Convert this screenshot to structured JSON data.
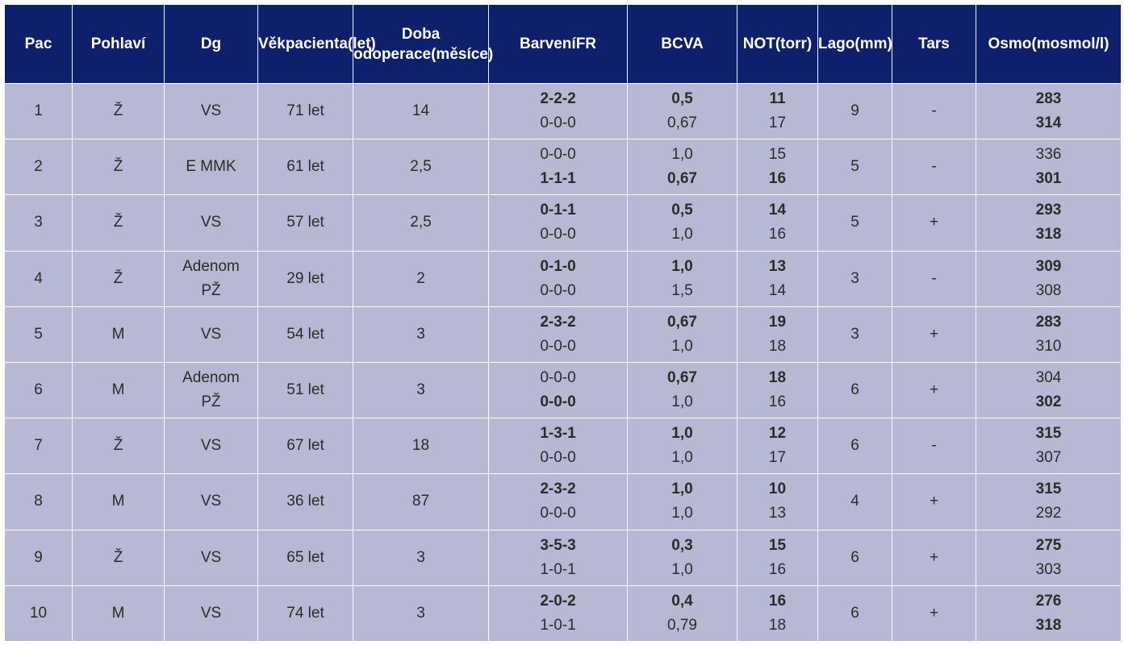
{
  "headers": [
    [
      "Pac"
    ],
    [
      "Pohlaví"
    ],
    [
      "Dg"
    ],
    [
      "Věk",
      "pacienta",
      "(let)"
    ],
    [
      "Doba od",
      "operace",
      "(měsíce)"
    ],
    [
      "Barvení",
      "FR"
    ],
    [
      "BCVA"
    ],
    [
      "NOT",
      "(torr)"
    ],
    [
      "Lago",
      "(mm)"
    ],
    [
      "Tars"
    ],
    [
      "Osmo",
      "(mosmol/l)"
    ]
  ],
  "rows": [
    {
      "pac": "1",
      "sex": "Ž",
      "dg": [
        "VS"
      ],
      "age": "71 let",
      "time": "14",
      "fr": [
        {
          "v": "2-2-2",
          "b": true
        },
        {
          "v": "0-0-0",
          "b": false
        }
      ],
      "bcva": [
        {
          "v": "0,5",
          "b": true
        },
        {
          "v": "0,67",
          "b": false
        }
      ],
      "not": [
        {
          "v": "11",
          "b": true
        },
        {
          "v": "17",
          "b": false
        }
      ],
      "lago": "9",
      "tars": "-",
      "osmo": [
        {
          "v": "283",
          "b": true
        },
        {
          "v": "314",
          "b": true
        }
      ]
    },
    {
      "pac": "2",
      "sex": "Ž",
      "dg": [
        "E MMK"
      ],
      "age": "61 let",
      "time": "2,5",
      "fr": [
        {
          "v": "0-0-0",
          "b": false
        },
        {
          "v": "1-1-1",
          "b": true
        }
      ],
      "bcva": [
        {
          "v": "1,0",
          "b": false
        },
        {
          "v": "0,67",
          "b": true
        }
      ],
      "not": [
        {
          "v": "15",
          "b": false
        },
        {
          "v": "16",
          "b": true
        }
      ],
      "lago": "5",
      "tars": "-",
      "osmo": [
        {
          "v": "336",
          "b": false
        },
        {
          "v": "301",
          "b": true
        }
      ]
    },
    {
      "pac": "3",
      "sex": "Ž",
      "dg": [
        "VS"
      ],
      "age": "57 let",
      "time": "2,5",
      "fr": [
        {
          "v": "0-1-1",
          "b": true
        },
        {
          "v": "0-0-0",
          "b": false
        }
      ],
      "bcva": [
        {
          "v": "0,5",
          "b": true
        },
        {
          "v": "1,0",
          "b": false
        }
      ],
      "not": [
        {
          "v": "14",
          "b": true
        },
        {
          "v": "16",
          "b": false
        }
      ],
      "lago": "5",
      "tars": "+",
      "osmo": [
        {
          "v": "293",
          "b": true
        },
        {
          "v": "318",
          "b": true
        }
      ]
    },
    {
      "pac": "4",
      "sex": "Ž",
      "dg": [
        "Adenom",
        "PŽ"
      ],
      "age": "29 let",
      "time": "2",
      "fr": [
        {
          "v": "0-1-0",
          "b": true
        },
        {
          "v": "0-0-0",
          "b": false
        }
      ],
      "bcva": [
        {
          "v": "1,0",
          "b": true
        },
        {
          "v": "1,5",
          "b": false
        }
      ],
      "not": [
        {
          "v": "13",
          "b": true
        },
        {
          "v": "14",
          "b": false
        }
      ],
      "lago": "3",
      "tars": "-",
      "osmo": [
        {
          "v": "309",
          "b": true
        },
        {
          "v": "308",
          "b": false
        }
      ]
    },
    {
      "pac": "5",
      "sex": "M",
      "dg": [
        "VS"
      ],
      "age": "54 let",
      "time": "3",
      "fr": [
        {
          "v": "2-3-2",
          "b": true
        },
        {
          "v": "0-0-0",
          "b": false
        }
      ],
      "bcva": [
        {
          "v": "0,67",
          "b": true
        },
        {
          "v": "1,0",
          "b": false
        }
      ],
      "not": [
        {
          "v": "19",
          "b": true
        },
        {
          "v": "18",
          "b": false
        }
      ],
      "lago": "3",
      "tars": "+",
      "osmo": [
        {
          "v": "283",
          "b": true
        },
        {
          "v": "310",
          "b": false
        }
      ]
    },
    {
      "pac": "6",
      "sex": "M",
      "dg": [
        "Adenom",
        "PŽ"
      ],
      "age": "51 let",
      "time": "3",
      "fr": [
        {
          "v": "0-0-0",
          "b": false
        },
        {
          "v": "0-0-0",
          "b": true
        }
      ],
      "bcva": [
        {
          "v": "0,67",
          "b": true
        },
        {
          "v": "1,0",
          "b": false
        }
      ],
      "not": [
        {
          "v": "18",
          "b": true
        },
        {
          "v": "16",
          "b": false
        }
      ],
      "lago": "6",
      "tars": "+",
      "osmo": [
        {
          "v": "304",
          "b": false
        },
        {
          "v": "302",
          "b": true
        }
      ]
    },
    {
      "pac": "7",
      "sex": "Ž",
      "dg": [
        "VS"
      ],
      "age": "67 let",
      "time": "18",
      "fr": [
        {
          "v": "1-3-1",
          "b": true
        },
        {
          "v": "0-0-0",
          "b": false
        }
      ],
      "bcva": [
        {
          "v": "1,0",
          "b": true
        },
        {
          "v": "1,0",
          "b": false
        }
      ],
      "not": [
        {
          "v": "12",
          "b": true
        },
        {
          "v": "17",
          "b": false
        }
      ],
      "lago": "6",
      "tars": "-",
      "osmo": [
        {
          "v": "315",
          "b": true
        },
        {
          "v": "307",
          "b": false
        }
      ]
    },
    {
      "pac": "8",
      "sex": "M",
      "dg": [
        "VS"
      ],
      "age": "36 let",
      "time": "87",
      "fr": [
        {
          "v": "2-3-2",
          "b": true
        },
        {
          "v": "0-0-0",
          "b": false
        }
      ],
      "bcva": [
        {
          "v": "1,0",
          "b": true
        },
        {
          "v": "1,0",
          "b": false
        }
      ],
      "not": [
        {
          "v": "10",
          "b": true
        },
        {
          "v": "13",
          "b": false
        }
      ],
      "lago": "4",
      "tars": "+",
      "osmo": [
        {
          "v": "315",
          "b": true
        },
        {
          "v": "292",
          "b": false
        }
      ]
    },
    {
      "pac": "9",
      "sex": "Ž",
      "dg": [
        "VS"
      ],
      "age": "65 let",
      "time": "3",
      "fr": [
        {
          "v": "3-5-3",
          "b": true
        },
        {
          "v": "1-0-1",
          "b": false
        }
      ],
      "bcva": [
        {
          "v": "0,3",
          "b": true
        },
        {
          "v": "1,0",
          "b": false
        }
      ],
      "not": [
        {
          "v": "15",
          "b": true
        },
        {
          "v": "16",
          "b": false
        }
      ],
      "lago": "6",
      "tars": "+",
      "osmo": [
        {
          "v": "275",
          "b": true
        },
        {
          "v": "303",
          "b": false
        }
      ]
    },
    {
      "pac": "10",
      "sex": "M",
      "dg": [
        "VS"
      ],
      "age": "74 let",
      "time": "3",
      "fr": [
        {
          "v": "2-0-2",
          "b": true
        },
        {
          "v": "1-0-1",
          "b": false
        }
      ],
      "bcva": [
        {
          "v": "0,4",
          "b": true
        },
        {
          "v": "0,79",
          "b": false
        }
      ],
      "not": [
        {
          "v": "16",
          "b": true
        },
        {
          "v": "18",
          "b": false
        }
      ],
      "lago": "6",
      "tars": "+",
      "osmo": [
        {
          "v": "276",
          "b": true
        },
        {
          "v": "318",
          "b": true
        }
      ]
    }
  ]
}
